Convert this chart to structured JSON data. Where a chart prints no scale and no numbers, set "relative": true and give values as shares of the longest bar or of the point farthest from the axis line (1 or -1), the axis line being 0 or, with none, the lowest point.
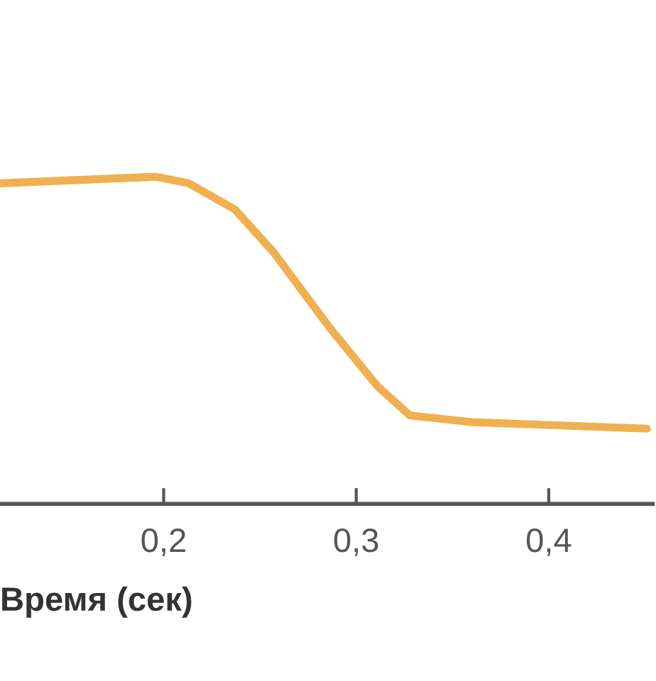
{
  "chart_data": {
    "type": "line",
    "xlabel": "Время (сек)",
    "relative": true,
    "x": [
      0.115,
      0.196,
      0.213,
      0.237,
      0.257,
      0.286,
      0.311,
      0.328,
      0.36,
      0.451
    ],
    "series": [
      {
        "color": "#f0b050",
        "values": [
          0.98,
          1,
          0.98,
          0.9,
          0.77,
          0.54,
          0.36,
          0.27,
          0.25,
          0.23
        ]
      }
    ],
    "xlim": [
      0.115,
      0.454
    ],
    "xticks": [
      {
        "value": 0.2,
        "label": "0,2"
      },
      {
        "value": 0.3,
        "label": "0,3"
      },
      {
        "value": 0.4,
        "label": "0,4"
      }
    ],
    "grid": false,
    "marker": "none",
    "line_style": "solid"
  }
}
